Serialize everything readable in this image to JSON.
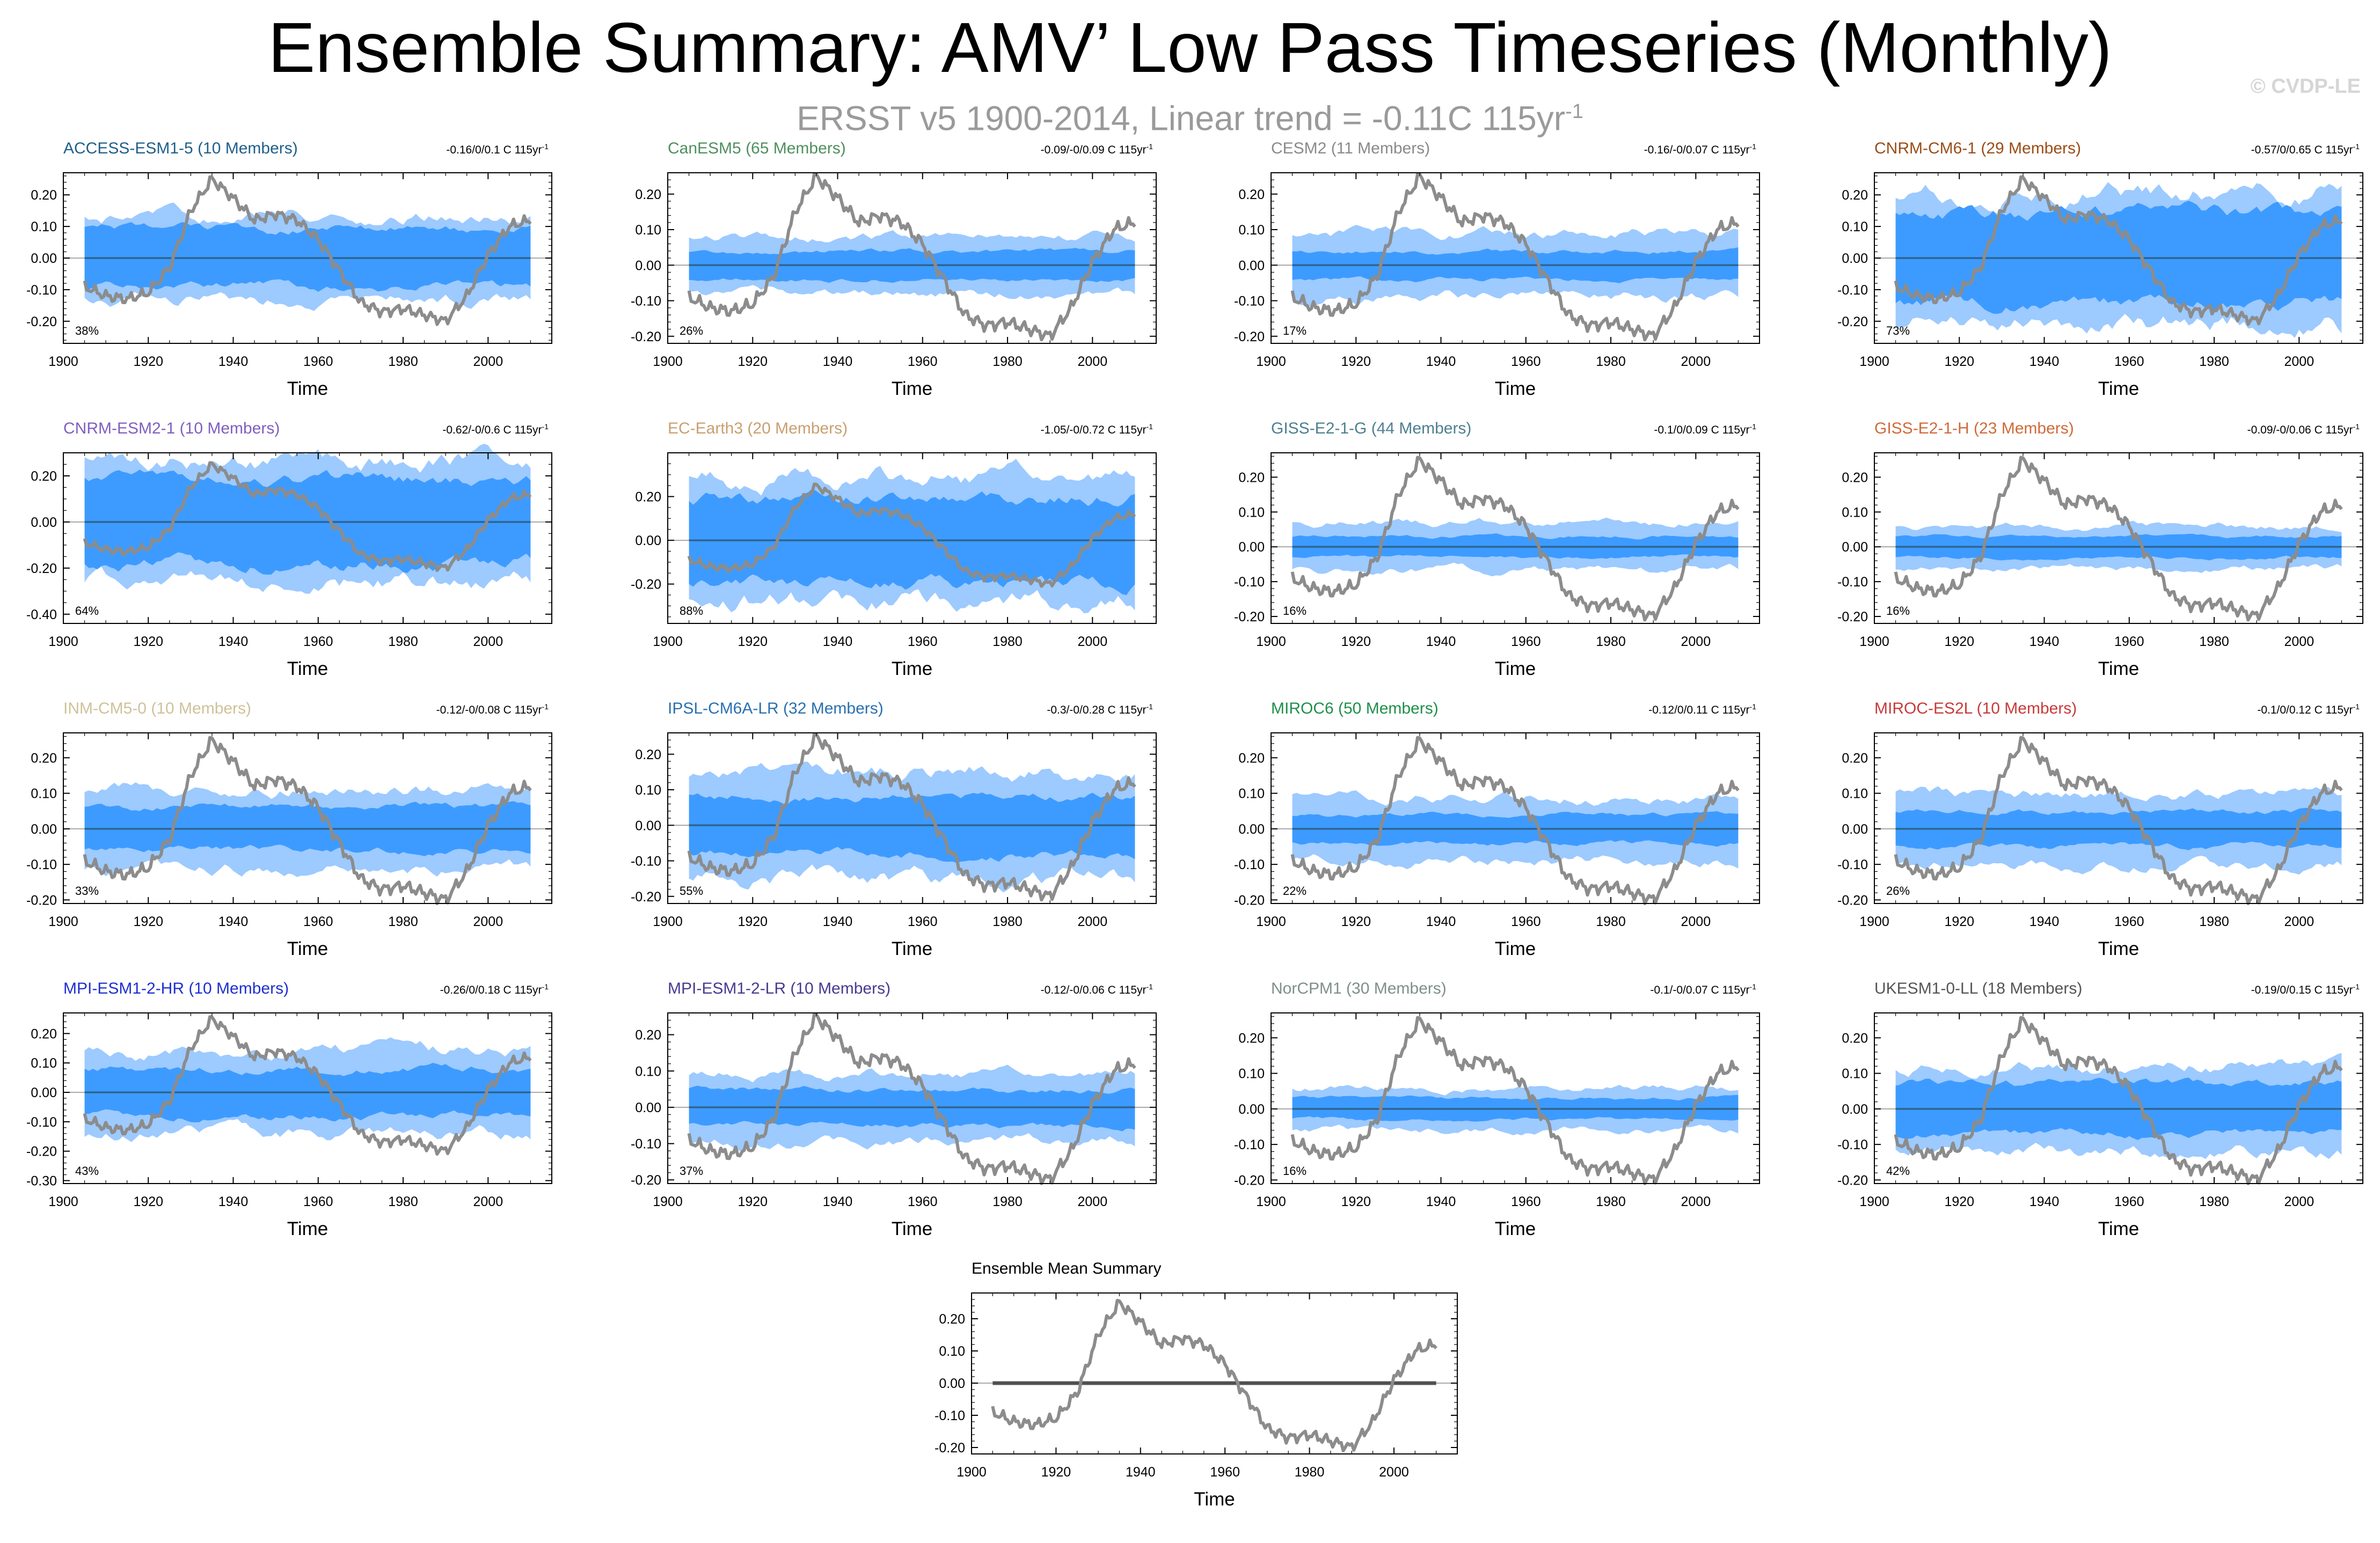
{
  "header": {
    "title": "Ensemble Summary: AMV’ Low Pass Timeseries (Monthly)",
    "subtitle": "ERSST v5 1900-2014, Linear trend = -0.11C 115yr",
    "subtitle_exp": "-1",
    "copyright": "© CVDP-LE"
  },
  "colors": {
    "obs_line": "#8c8c8c",
    "inner_band": "#3d9bff",
    "outer_band": "#9dcaff",
    "mean_line": "#2a78b8"
  },
  "chart_data": [
    {
      "type": "area",
      "title": "ACCESS-ESM1-5 (10 Members)",
      "title_color": "#1f5f8a",
      "trend": "-0.16/0/0.1 C 115yr",
      "percent": "38%",
      "xlabel": "Time",
      "x_ticks": [
        1900,
        1920,
        1940,
        1960,
        1980,
        2000
      ],
      "y_ticks": [
        "0.20",
        "0.10",
        "0.00",
        "-0.10",
        "-0.20"
      ],
      "ylim": [
        -0.27,
        0.27
      ],
      "inner": 0.09,
      "outer": 0.13,
      "seed": 1
    },
    {
      "type": "area",
      "title": "CanESM5 (65 Members)",
      "title_color": "#4f8f5f",
      "trend": "-0.09/-0/0.09 C 115yr",
      "percent": "26%",
      "xlabel": "Time",
      "x_ticks": [
        1900,
        1920,
        1940,
        1960,
        1980,
        2000
      ],
      "y_ticks": [
        "0.20",
        "0.10",
        "0.00",
        "-0.10",
        "-0.20"
      ],
      "ylim": [
        -0.22,
        0.26
      ],
      "inner": 0.04,
      "outer": 0.08,
      "seed": 2
    },
    {
      "type": "area",
      "title": "CESM2 (11 Members)",
      "title_color": "#8a8a8a",
      "trend": "-0.16/-0/0.07 C 115yr",
      "percent": "17%",
      "xlabel": "Time",
      "x_ticks": [
        1900,
        1920,
        1940,
        1960,
        1980,
        2000
      ],
      "y_ticks": [
        "0.20",
        "0.10",
        "0.00",
        "-0.10",
        "-0.20"
      ],
      "ylim": [
        -0.22,
        0.26
      ],
      "inner": 0.04,
      "outer": 0.09,
      "seed": 3
    },
    {
      "type": "area",
      "title": "CNRM-CM6-1 (29 Members)",
      "title_color": "#9a4d16",
      "trend": "-0.57/0/0.65 C 115yr",
      "percent": "73%",
      "xlabel": "Time",
      "x_ticks": [
        1900,
        1920,
        1940,
        1960,
        1980,
        2000
      ],
      "y_ticks": [
        "0.20",
        "0.10",
        "0.00",
        "-0.10",
        "-0.20"
      ],
      "ylim": [
        -0.27,
        0.27
      ],
      "inner": 0.14,
      "outer": 0.21,
      "seed": 4
    },
    {
      "type": "area",
      "title": "CNRM-ESM2-1 (10 Members)",
      "title_color": "#7f5fbf",
      "trend": "-0.62/-0/0.6 C 115yr",
      "percent": "64%",
      "xlabel": "Time",
      "x_ticks": [
        1900,
        1920,
        1940,
        1960,
        1980,
        2000
      ],
      "y_ticks": [
        "0.20",
        "0.00",
        "-0.20",
        "-0.40"
      ],
      "ylim": [
        -0.44,
        0.3
      ],
      "inner": 0.18,
      "outer": 0.26,
      "seed": 5
    },
    {
      "type": "area",
      "title": "EC-Earth3 (20 Members)",
      "title_color": "#c8a070",
      "trend": "-1.05/-0/0.72 C 115yr",
      "percent": "88%",
      "xlabel": "Time",
      "x_ticks": [
        1900,
        1920,
        1940,
        1960,
        1980,
        2000
      ],
      "y_ticks": [
        "0.20",
        "0.00",
        "-0.20"
      ],
      "ylim": [
        -0.38,
        0.4
      ],
      "inner": 0.2,
      "outer": 0.28,
      "seed": 6
    },
    {
      "type": "area",
      "title": "GISS-E2-1-G (44 Members)",
      "title_color": "#4d7f8f",
      "trend": "-0.1/0/0.09 C 115yr",
      "percent": "16%",
      "xlabel": "Time",
      "x_ticks": [
        1900,
        1920,
        1940,
        1960,
        1980,
        2000
      ],
      "y_ticks": [
        "0.20",
        "0.10",
        "0.00",
        "-0.10",
        "-0.20"
      ],
      "ylim": [
        -0.22,
        0.27
      ],
      "inner": 0.03,
      "outer": 0.07,
      "seed": 7
    },
    {
      "type": "area",
      "title": "GISS-E2-1-H (23 Members)",
      "title_color": "#d06a3a",
      "trend": "-0.09/-0/0.06 C 115yr",
      "percent": "16%",
      "xlabel": "Time",
      "x_ticks": [
        1900,
        1920,
        1940,
        1960,
        1980,
        2000
      ],
      "y_ticks": [
        "0.20",
        "0.10",
        "0.00",
        "-0.10",
        "-0.20"
      ],
      "ylim": [
        -0.22,
        0.27
      ],
      "inner": 0.03,
      "outer": 0.06,
      "seed": 8
    },
    {
      "type": "area",
      "title": "INM-CM5-0 (10 Members)",
      "title_color": "#cfc29a",
      "trend": "-0.12/-0/0.08 C 115yr",
      "percent": "33%",
      "xlabel": "Time",
      "x_ticks": [
        1900,
        1920,
        1940,
        1960,
        1980,
        2000
      ],
      "y_ticks": [
        "0.20",
        "0.10",
        "0.00",
        "-0.10",
        "-0.20"
      ],
      "ylim": [
        -0.21,
        0.27
      ],
      "inner": 0.06,
      "outer": 0.11,
      "seed": 9
    },
    {
      "type": "area",
      "title": "IPSL-CM6A-LR (32 Members)",
      "title_color": "#2a70b0",
      "trend": "-0.3/-0/0.28 C 115yr",
      "percent": "55%",
      "xlabel": "Time",
      "x_ticks": [
        1900,
        1920,
        1940,
        1960,
        1980,
        2000
      ],
      "y_ticks": [
        "0.20",
        "0.10",
        "0.00",
        "-0.10",
        "-0.20"
      ],
      "ylim": [
        -0.22,
        0.26
      ],
      "inner": 0.08,
      "outer": 0.15,
      "seed": 10
    },
    {
      "type": "area",
      "title": "MIROC6 (50 Members)",
      "title_color": "#1f8f4a",
      "trend": "-0.12/0/0.11 C 115yr",
      "percent": "22%",
      "xlabel": "Time",
      "x_ticks": [
        1900,
        1920,
        1940,
        1960,
        1980,
        2000
      ],
      "y_ticks": [
        "0.20",
        "0.10",
        "0.00",
        "-0.10",
        "-0.20"
      ],
      "ylim": [
        -0.21,
        0.27
      ],
      "inner": 0.04,
      "outer": 0.09,
      "seed": 11
    },
    {
      "type": "area",
      "title": "MIROC-ES2L (10 Members)",
      "title_color": "#c83a3a",
      "trend": "-0.1/0/0.12 C 115yr",
      "percent": "26%",
      "xlabel": "Time",
      "x_ticks": [
        1900,
        1920,
        1940,
        1960,
        1980,
        2000
      ],
      "y_ticks": [
        "0.20",
        "0.10",
        "0.00",
        "-0.10",
        "-0.20"
      ],
      "ylim": [
        -0.21,
        0.27
      ],
      "inner": 0.05,
      "outer": 0.1,
      "seed": 12
    },
    {
      "type": "area",
      "title": "MPI-ESM1-2-HR (10 Members)",
      "title_color": "#1f2fd0",
      "trend": "-0.26/0/0.18 C 115yr",
      "percent": "43%",
      "xlabel": "Time",
      "x_ticks": [
        1900,
        1920,
        1940,
        1960,
        1980,
        2000
      ],
      "y_ticks": [
        "0.20",
        "0.10",
        "0.00",
        "-0.10",
        "-0.20",
        "-0.30"
      ],
      "ylim": [
        -0.31,
        0.27
      ],
      "inner": 0.08,
      "outer": 0.14,
      "seed": 13
    },
    {
      "type": "area",
      "title": "MPI-ESM1-2-LR (10 Members)",
      "title_color": "#4a3a8f",
      "trend": "-0.12/-0/0.06 C 115yr",
      "percent": "37%",
      "xlabel": "Time",
      "x_ticks": [
        1900,
        1920,
        1940,
        1960,
        1980,
        2000
      ],
      "y_ticks": [
        "0.20",
        "0.10",
        "0.00",
        "-0.10",
        "-0.20"
      ],
      "ylim": [
        -0.21,
        0.26
      ],
      "inner": 0.05,
      "outer": 0.09,
      "seed": 14
    },
    {
      "type": "area",
      "title": "NorCPM1 (30 Members)",
      "title_color": "#7f8f8a",
      "trend": "-0.1/-0/0.07 C 115yr",
      "percent": "16%",
      "xlabel": "Time",
      "x_ticks": [
        1900,
        1920,
        1940,
        1960,
        1980,
        2000
      ],
      "y_ticks": [
        "0.20",
        "0.10",
        "0.00",
        "-0.10",
        "-0.20"
      ],
      "ylim": [
        -0.21,
        0.27
      ],
      "inner": 0.03,
      "outer": 0.06,
      "seed": 15
    },
    {
      "type": "area",
      "title": "UKESM1-0-LL (18 Members)",
      "title_color": "#555555",
      "trend": "-0.19/0/0.15 C 115yr",
      "percent": "42%",
      "xlabel": "Time",
      "x_ticks": [
        1900,
        1920,
        1940,
        1960,
        1980,
        2000
      ],
      "y_ticks": [
        "0.20",
        "0.10",
        "0.00",
        "-0.10",
        "-0.20"
      ],
      "ylim": [
        -0.21,
        0.27
      ],
      "inner": 0.07,
      "outer": 0.12,
      "seed": 16
    },
    {
      "type": "line",
      "title": "Ensemble Mean Summary",
      "title_color": "#000000",
      "xlabel": "Time",
      "x_ticks": [
        1900,
        1920,
        1940,
        1960,
        1980,
        2000
      ],
      "y_ticks": [
        "0.20",
        "0.10",
        "0.00",
        "-0.10",
        "-0.20"
      ],
      "ylim": [
        -0.22,
        0.28
      ],
      "mean_line_color": "#555555"
    }
  ],
  "observed_series": {
    "name": "ERSST v5 AMV",
    "x": [
      1905,
      1910,
      1915,
      1920,
      1925,
      1930,
      1935,
      1940,
      1945,
      1950,
      1955,
      1960,
      1965,
      1970,
      1975,
      1980,
      1985,
      1990,
      1995,
      2000,
      2005,
      2010
    ],
    "y": [
      -0.09,
      -0.12,
      -0.13,
      -0.11,
      -0.03,
      0.15,
      0.25,
      0.19,
      0.12,
      0.14,
      0.12,
      0.06,
      -0.04,
      -0.14,
      -0.17,
      -0.16,
      -0.18,
      -0.2,
      -0.12,
      0.01,
      0.1,
      0.12
    ]
  }
}
